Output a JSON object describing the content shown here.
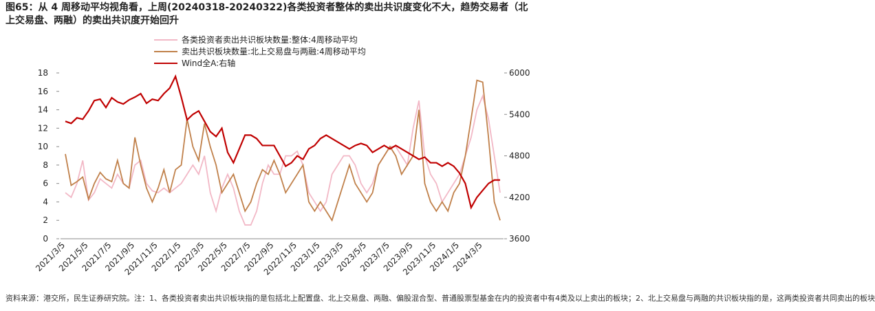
{
  "chart_data": {
    "type": "line",
    "title": "图65：从 4 周移动平均视角看，上周(20240318-20240322)各类投资者整体的卖出共识度变化不大，趋势交易者（北上交易盘、两融）的卖出共识度开始回升",
    "note": "资料来源：港交所，民生证券研究院。注：1、各类投资者卖出共识板块指的是包括北上配置盘、北上交易盘、两融、偏股混合型、普通股票型基金在内的投资者中有4类及以上卖出的板块；2、北上交易盘与两融的共识板块指的是，这两类投资者共同卖出的板块",
    "categories": [
      "2021/3/5",
      null,
      null,
      null,
      "2021/5/5",
      null,
      null,
      null,
      "2021/7/5",
      null,
      null,
      null,
      "2021/9/5",
      null,
      null,
      null,
      "2021/11/5",
      null,
      null,
      null,
      "2022/1/5",
      null,
      null,
      null,
      "2022/3/5",
      null,
      null,
      null,
      "2022/5/5",
      null,
      null,
      null,
      "2022/7/5",
      null,
      null,
      null,
      "2022/9/5",
      null,
      null,
      null,
      "2022/11/5",
      null,
      null,
      null,
      "2023/1/5",
      null,
      null,
      null,
      "2023/3/5",
      null,
      null,
      null,
      "2023/5/5",
      null,
      null,
      null,
      "2023/7/5",
      null,
      null,
      null,
      "2023/9/5",
      null,
      null,
      null,
      "2023/11/5",
      null,
      null,
      null,
      "2024/1/5",
      null,
      null,
      null,
      "2024/3/5",
      null,
      null,
      null
    ],
    "ylim": [
      0,
      18
    ],
    "yticks": [
      0,
      2,
      4,
      6,
      8,
      10,
      12,
      14,
      16,
      18
    ],
    "y2lim": [
      3600,
      6000
    ],
    "y2ticks": [
      3600,
      4200,
      4800,
      5400,
      6000
    ],
    "legend": "top",
    "series": [
      {
        "name": "各类投资者卖出共识板块数量:整体:4周移动平均",
        "color": "#f2b8c6",
        "values": [
          5,
          4.5,
          6,
          8.5,
          4.2,
          5,
          6.5,
          6,
          5.5,
          7,
          6,
          5.5,
          8,
          8.5,
          6,
          5.2,
          5,
          5.5,
          5,
          5.5,
          6,
          7,
          8,
          7,
          9,
          5,
          3,
          5.5,
          7,
          5.5,
          3,
          1.5,
          1.5,
          3,
          6,
          8,
          7,
          7,
          9,
          9,
          9.5,
          8,
          5,
          4,
          3,
          4,
          7,
          8,
          9,
          9,
          8,
          6,
          5,
          6,
          8,
          9,
          10,
          10,
          9,
          8,
          12,
          15,
          9,
          7,
          6,
          4,
          5,
          6,
          7,
          9,
          11,
          14,
          15.5,
          13,
          9,
          5
        ]
      },
      {
        "name": "卖出共识板块数量:北上交易盘与两融:4周移动平均",
        "color": "#c0804a",
        "values": [
          9.2,
          5.8,
          6.2,
          6.7,
          4.3,
          6,
          7.2,
          6.5,
          6.2,
          8.5,
          6,
          5.5,
          11,
          8,
          5.5,
          4,
          5.5,
          7.5,
          5,
          7.5,
          8,
          13,
          10,
          8.5,
          12.5,
          10,
          8,
          5,
          6,
          7,
          5,
          3,
          4,
          6,
          7.5,
          7,
          8.5,
          7,
          5,
          6,
          7,
          8,
          4,
          3,
          4,
          3,
          2,
          4,
          6,
          8,
          6,
          5,
          4,
          5,
          8,
          9,
          10,
          9,
          7,
          8,
          9,
          14,
          6,
          4,
          3,
          4,
          3,
          5,
          6,
          9,
          13,
          17.2,
          17,
          11,
          4,
          2
        ]
      },
      {
        "name": "Wind全A:右轴",
        "color": "#c00000",
        "axis": "y2",
        "values": [
          5300,
          5270,
          5350,
          5330,
          5450,
          5600,
          5620,
          5500,
          5640,
          5580,
          5550,
          5610,
          5650,
          5700,
          5560,
          5620,
          5600,
          5700,
          5780,
          5950,
          5650,
          5320,
          5400,
          5450,
          5300,
          5150,
          5080,
          5200,
          4850,
          4700,
          4900,
          5100,
          5100,
          5050,
          4950,
          4950,
          4950,
          4800,
          4650,
          4700,
          4800,
          4750,
          4900,
          4950,
          5050,
          5100,
          5050,
          5000,
          4950,
          4900,
          4950,
          4980,
          4950,
          4850,
          4900,
          4950,
          4900,
          4950,
          4900,
          4850,
          4800,
          4750,
          4780,
          4700,
          4700,
          4650,
          4700,
          4650,
          4550,
          4400,
          4050,
          4200,
          4300,
          4400,
          4450,
          4450
        ]
      }
    ]
  }
}
